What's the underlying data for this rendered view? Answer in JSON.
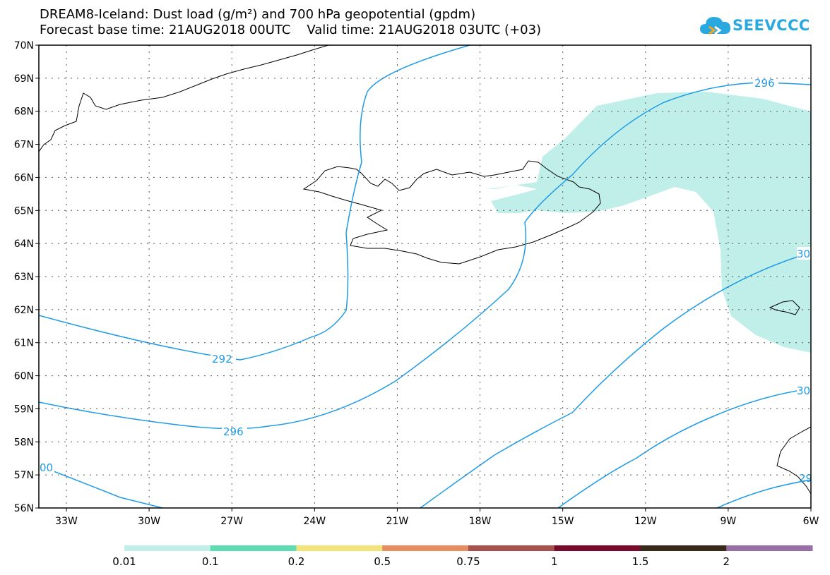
{
  "title": {
    "line1": "DREAM8-Iceland: Dust load (g/m²) and 700 hPa geopotential (gpdm)",
    "line2": "Forecast base time: 21AUG2018 00UTC    Valid time: 21AUG2018 03UTC (+03)"
  },
  "logo": {
    "text": "SEEVCCC",
    "icon": "cloud-icon",
    "color": "#2aa8e0"
  },
  "axes": {
    "lat_labels": [
      "70N",
      "69N",
      "68N",
      "67N",
      "66N",
      "65N",
      "64N",
      "63N",
      "62N",
      "61N",
      "60N",
      "59N",
      "58N",
      "57N",
      "56N"
    ],
    "lon_labels": [
      "33W",
      "30W",
      "27W",
      "24W",
      "21W",
      "18W",
      "15W",
      "12W",
      "9W",
      "6W"
    ]
  },
  "contour_color": "#1e9be6",
  "contour_labels": [
    "296",
    "292",
    "296",
    "00",
    "30",
    "30",
    "29"
  ],
  "dust_fill_color": "#c0efe9",
  "colorbar": {
    "colors": [
      "#c0efe9",
      "#5fdcb1",
      "#f4e37b",
      "#e88c62",
      "#a6514b",
      "#7a0a2c",
      "#3a2a1a",
      "#9870a7"
    ],
    "labels": [
      "0.01",
      "0.1",
      "0.2",
      "0.5",
      "0.75",
      "1",
      "1.5",
      "2"
    ]
  }
}
